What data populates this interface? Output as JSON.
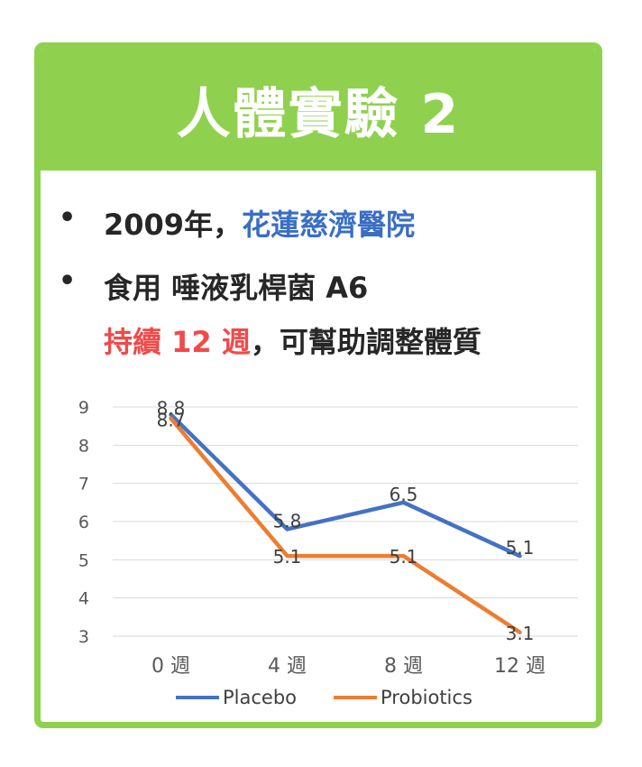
{
  "header": {
    "title": "人體實驗 2"
  },
  "bullets": [
    {
      "marker": "•",
      "prefix": "2009年，",
      "highlight": "花蓮慈濟醫院"
    },
    {
      "marker": "•",
      "line1": "食用 唾液乳桿菌 A6",
      "line2_highlight": "持續 12 週",
      "line2_rest": "，可幫助調整體質"
    }
  ],
  "colors": {
    "accent": "#8fd14f",
    "blue_text": "#3a6ec4",
    "red_text": "#f04a4a",
    "placebo": "#4472c4",
    "probiotics": "#ed7d31"
  },
  "chart_data": {
    "type": "line",
    "categories": [
      "0 週",
      "4 週",
      "8 週",
      "12 週"
    ],
    "series": [
      {
        "name": "Placebo",
        "values": [
          8.8,
          5.8,
          6.5,
          5.1
        ],
        "color": "#4472c4"
      },
      {
        "name": "Probiotics",
        "values": [
          8.7,
          5.1,
          5.1,
          3.1
        ],
        "color": "#ed7d31"
      }
    ],
    "y_ticks": [
      3,
      4,
      5,
      6,
      7,
      8,
      9
    ],
    "ylim": [
      3,
      9
    ],
    "grid": true,
    "legend": "bottom"
  }
}
